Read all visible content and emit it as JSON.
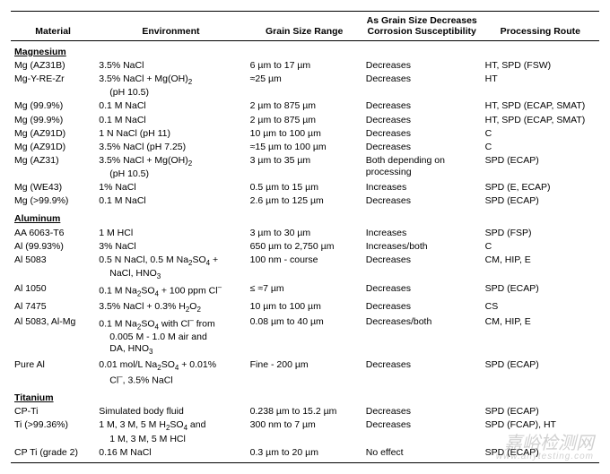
{
  "columns": {
    "material": "Material",
    "environment": "Environment",
    "grainsize": "Grain Size Range",
    "effect": "As Grain Size Decreases Corrosion Susceptibility",
    "processing": "Processing Route"
  },
  "groups": [
    {
      "name": "Magnesium",
      "rows": [
        {
          "material": "Mg (AZ31B)",
          "environment": "3.5% NaCl",
          "grainsize": "6 µm to 17 µm",
          "effect": "Decreases",
          "processing": "HT, SPD (FSW)"
        },
        {
          "material": "Mg-Y-RE-Zr",
          "environment": "3.5% NaCl + Mg(OH)<sub>2</sub><span class=\"indent\">(pH 10.5)</span>",
          "grainsize": "≈25 µm",
          "effect": "Decreases",
          "processing": "HT"
        },
        {
          "material": "Mg (99.9%)",
          "environment": "0.1 M NaCl",
          "grainsize": "2 µm to 875 µm",
          "effect": "Decreases",
          "processing": "HT, SPD (ECAP, SMAT)"
        },
        {
          "material": "Mg (99.9%)",
          "environment": "0.1 M NaCl",
          "grainsize": "2 µm to 875 µm",
          "effect": "Decreases",
          "processing": "HT, SPD (ECAP, SMAT)"
        },
        {
          "material": "Mg (AZ91D)",
          "environment": "1 N NaCl (pH 11)",
          "grainsize": "10 µm to 100 µm",
          "effect": "Decreases",
          "processing": "C"
        },
        {
          "material": "Mg (AZ91D)",
          "environment": "3.5% NaCl (pH 7.25)",
          "grainsize": "≈15 µm to 100 µm",
          "effect": "Decreases",
          "processing": "C"
        },
        {
          "material": "Mg (AZ31)",
          "environment": "3.5% NaCl + Mg(OH)<sub>2</sub><span class=\"indent\">(pH 10.5)</span>",
          "grainsize": "3 µm to 35 µm",
          "effect": "Both depending on processing",
          "processing": "SPD (ECAP)"
        },
        {
          "material": "Mg (WE43)",
          "environment": "1% NaCl",
          "grainsize": "0.5 µm to 15 µm",
          "effect": "Increases",
          "processing": "SPD (E, ECAP)"
        },
        {
          "material": "Mg (>99.9%)",
          "environment": "0.1 M NaCl",
          "grainsize": "2.6 µm to 125 µm",
          "effect": "Decreases",
          "processing": "SPD (ECAP)"
        }
      ]
    },
    {
      "name": "Aluminum",
      "rows": [
        {
          "material": "AA 6063-T6",
          "environment": "1 M HCl",
          "grainsize": "3 µm to 30 µm",
          "effect": "Increases",
          "processing": "SPD (FSP)"
        },
        {
          "material": "Al (99.93%)",
          "environment": "3% NaCl",
          "grainsize": "650 µm to 2,750 µm",
          "effect": "Increases/both",
          "processing": "C"
        },
        {
          "material": "Al 5083",
          "environment": "0.5 N NaCl, 0.5 M Na<sub>2</sub>SO<sub>4</sub> +<span class=\"indent\">NaCl, HNO<sub>3</sub></span>",
          "grainsize": "100 nm - course",
          "effect": "Decreases",
          "processing": "CM, HIP, E"
        },
        {
          "material": "Al 1050",
          "environment": "0.1 M Na<sub>2</sub>SO<sub>4</sub> + 100 ppm Cl<sup>–</sup>",
          "grainsize": "≤ ≈7 µm",
          "effect": "Decreases",
          "processing": "SPD (ECAP)"
        },
        {
          "material": "Al 7475",
          "environment": "3.5% NaCl + 0.3% H<sub>2</sub>O<sub>2</sub>",
          "grainsize": "10 µm to 100 µm",
          "effect": "Decreases",
          "processing": "CS"
        },
        {
          "material": "Al 5083, Al-Mg",
          "environment": "0.1 M Na<sub>2</sub>SO<sub>4</sub> with Cl<sup>–</sup> from<span class=\"indent\">0.005 M - 1.0 M air and</span><span class=\"indent\">DA, HNO<sub>3</sub></span>",
          "grainsize": "0.08 µm to 40 µm",
          "effect": "Decreases/both",
          "processing": "CM, HIP, E"
        },
        {
          "material": "Pure Al",
          "environment": "0.01 mol/L Na<sub>2</sub>SO<sub>4</sub> + 0.01%<span class=\"indent\">Cl<sup>–</sup>, 3.5% NaCl</span>",
          "grainsize": "Fine - 200 µm",
          "effect": "Decreases",
          "processing": "SPD (ECAP)"
        }
      ]
    },
    {
      "name": "Titanium",
      "rows": [
        {
          "material": "CP-Ti",
          "environment": "Simulated body fluid",
          "grainsize": "0.238 µm to 15.2 µm",
          "effect": "Decreases",
          "processing": "SPD (ECAP)"
        },
        {
          "material": "Ti (>99.36%)",
          "environment": "1 M, 3 M, 5 M H<sub>2</sub>SO<sub>4</sub> and<span class=\"indent\">1 M, 3 M, 5 M HCl</span>",
          "grainsize": "300 nm to 7 µm",
          "effect": "Decreases",
          "processing": "SPD (FCAP), HT"
        },
        {
          "material": "CP Ti (grade 2)",
          "environment": "0.16 M NaCl",
          "grainsize": "0.3 µm to 20 µm",
          "effect": "No effect",
          "processing": "SPD (ECAP)"
        }
      ]
    }
  ],
  "watermark": {
    "main": "嘉峪检测网",
    "sub": "www.anytesting.com"
  }
}
